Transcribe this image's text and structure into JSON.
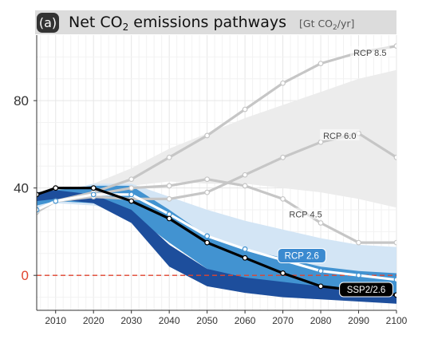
{
  "header": {
    "panel_label": "a",
    "title_parts": {
      "pre": "Net CO",
      "sub": "2",
      "post": " emissions pathways"
    },
    "unit_parts": {
      "pre": "[Gt CO",
      "sub": "2",
      "post": "/yr]"
    }
  },
  "colors": {
    "grey_band": "#ececec",
    "light_blue_band": "#d3e5f5",
    "mid_blue_band": "#4293d1",
    "dark_blue_band": "#1d4e9c",
    "rcp_line": "#c6c6c6",
    "ssp_line": "#000000",
    "zero_line": "#e0442f",
    "rcp26_badge": "#3b8ad0",
    "ssp_badge": "#000000"
  },
  "chart_data": {
    "type": "line",
    "title": "Net CO2 emissions pathways [Gt CO2/yr]",
    "xlabel": "",
    "ylabel": "",
    "xlim": [
      2005,
      2100
    ],
    "ylim": [
      -16,
      110
    ],
    "x_ticks": [
      2010,
      2020,
      2030,
      2040,
      2050,
      2060,
      2070,
      2080,
      2090,
      2100
    ],
    "x_tick_labels": [
      "2010",
      "2020",
      "2030",
      "2040",
      "2050",
      "2060",
      "2070",
      "2080",
      "2090",
      "2100"
    ],
    "y_ticks": [
      0,
      40,
      80
    ],
    "y_tick_labels": [
      "0",
      "40",
      "80"
    ],
    "grid": true,
    "reference_line": {
      "y": 0,
      "style": "dashed"
    },
    "series": [
      {
        "name": "RCP 8.5",
        "style": "grey-line",
        "x": [
          2005,
          2010,
          2020,
          2030,
          2040,
          2050,
          2060,
          2070,
          2080,
          2090,
          2100
        ],
        "values": [
          29,
          34,
          38,
          44,
          54,
          64,
          76,
          88,
          97,
          102,
          105
        ]
      },
      {
        "name": "RCP 6.0",
        "style": "grey-line",
        "x": [
          2005,
          2010,
          2020,
          2030,
          2040,
          2050,
          2060,
          2070,
          2080,
          2090,
          2100
        ],
        "values": [
          29,
          34,
          36,
          35,
          35,
          38,
          46,
          54,
          61,
          65,
          54
        ]
      },
      {
        "name": "RCP 4.5",
        "style": "grey-line",
        "x": [
          2005,
          2010,
          2020,
          2030,
          2040,
          2050,
          2060,
          2070,
          2080,
          2090,
          2100
        ],
        "values": [
          29,
          34,
          37,
          40,
          41,
          44,
          41,
          35,
          24,
          15,
          15
        ]
      },
      {
        "name": "RCP 2.6",
        "style": "blue-line",
        "x": [
          2005,
          2010,
          2020,
          2030,
          2040,
          2050,
          2060,
          2070,
          2080,
          2090,
          2100
        ],
        "values": [
          30,
          34,
          37,
          37,
          28,
          18,
          12,
          7,
          2,
          0,
          -2
        ]
      },
      {
        "name": "SSP2/2.6",
        "style": "black-line",
        "x": [
          2005,
          2010,
          2020,
          2030,
          2040,
          2050,
          2060,
          2070,
          2080,
          2090,
          2100
        ],
        "values": [
          37,
          40,
          40,
          34,
          26,
          15,
          8,
          1,
          -5,
          -7,
          -9
        ]
      }
    ],
    "bands": [
      {
        "style": "grey-band",
        "x": [
          2005,
          2020,
          2030,
          2040,
          2050,
          2060,
          2070,
          2080,
          2090,
          2100
        ],
        "upper": [
          36,
          42,
          49,
          58,
          65,
          72,
          78,
          84,
          90,
          94
        ],
        "lower": [
          36,
          41,
          41,
          43,
          42,
          42,
          40,
          38,
          35,
          31
        ]
      },
      {
        "style": "light-blue-band",
        "x": [
          2005,
          2010,
          2020,
          2030,
          2040,
          2050,
          2060,
          2070,
          2080,
          2090,
          2100
        ],
        "upper": [
          34,
          38,
          42,
          42,
          36,
          30,
          25,
          21,
          17,
          14,
          13
        ],
        "lower": [
          30,
          33,
          32,
          29,
          20,
          9,
          5,
          3,
          1,
          0,
          -1
        ]
      },
      {
        "style": "mid-blue-band",
        "x": [
          2005,
          2010,
          2020,
          2030,
          2040,
          2050,
          2060,
          2070,
          2080,
          2090,
          2100
        ],
        "upper": [
          36,
          39,
          41,
          41,
          30,
          18,
          12,
          8,
          4,
          2,
          1
        ],
        "lower": [
          32,
          34,
          33,
          28,
          15,
          3,
          -2,
          -5,
          -7,
          -9,
          -10
        ]
      },
      {
        "style": "dark-blue-band",
        "x": [
          2005,
          2010,
          2020,
          2030,
          2040,
          2050,
          2060,
          2070,
          2080,
          2090,
          2100
        ],
        "upper": [
          38,
          39,
          37,
          30,
          14,
          3,
          -1,
          -3,
          -5,
          -7,
          -8
        ],
        "lower": [
          34,
          35,
          33,
          24,
          4,
          -5,
          -8,
          -10,
          -11,
          -12,
          -13
        ]
      }
    ],
    "annotations": [
      {
        "text": "RCP 8.5",
        "style": "plain",
        "x": 2093,
        "y": 102
      },
      {
        "text": "RCP 6.0",
        "style": "plain",
        "x": 2085,
        "y": 64
      },
      {
        "text": "RCP 4.5",
        "style": "plain",
        "x": 2076,
        "y": 28
      },
      {
        "text": "RCP 2.6",
        "style": "badge-blue",
        "x": 2075,
        "y": 9
      },
      {
        "text": "SSP2/2.6",
        "style": "badge-black",
        "x": 2092,
        "y": -6.5
      }
    ]
  }
}
